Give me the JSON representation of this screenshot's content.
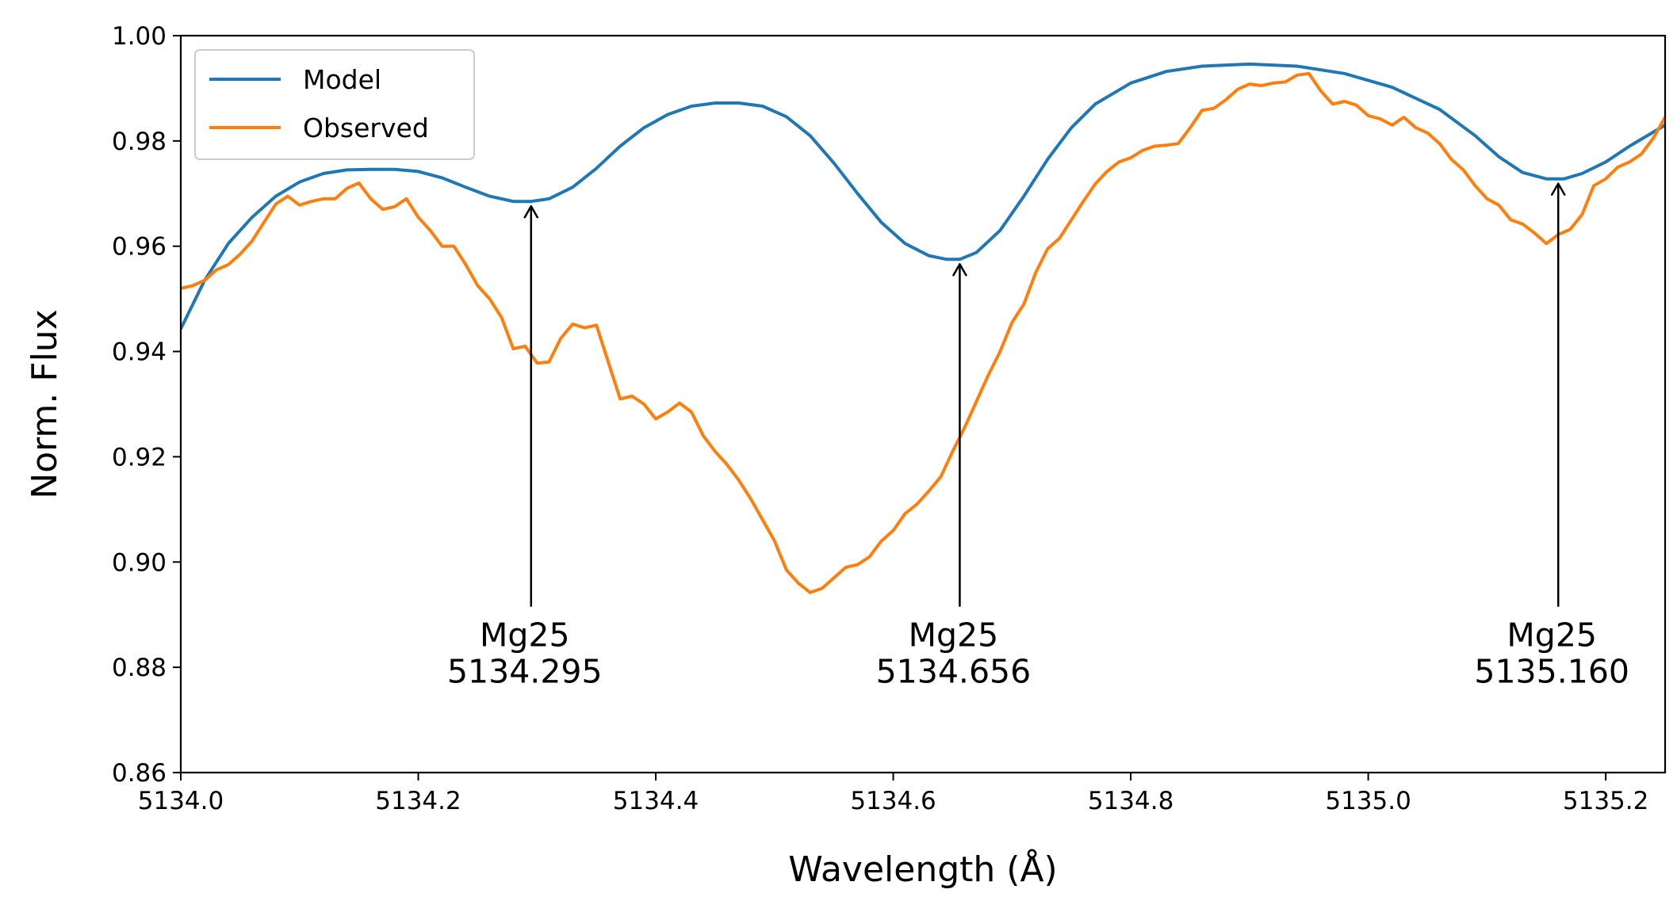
{
  "chart_data": {
    "type": "line",
    "xlabel": "Wavelength (Å)",
    "ylabel": "Norm. Flux",
    "xlim": [
      5134.0,
      5135.25
    ],
    "ylim": [
      0.86,
      1.0
    ],
    "x_ticks": [
      "5134.0",
      "5134.2",
      "5134.4",
      "5134.6",
      "5134.8",
      "5135.0",
      "5135.2"
    ],
    "x_tick_values": [
      5134.0,
      5134.2,
      5134.4,
      5134.6,
      5134.8,
      5135.0,
      5135.2
    ],
    "y_ticks": [
      "0.86",
      "0.88",
      "0.90",
      "0.92",
      "0.94",
      "0.96",
      "0.98",
      "1.00"
    ],
    "y_tick_values": [
      0.86,
      0.88,
      0.9,
      0.92,
      0.94,
      0.96,
      0.98,
      1.0
    ],
    "grid": false,
    "legend_position": "top-left",
    "series": [
      {
        "name": "Model",
        "color": "#1f77b4",
        "points": [
          [
            5134.0,
            0.9443
          ],
          [
            5134.02,
            0.9535
          ],
          [
            5134.04,
            0.9605
          ],
          [
            5134.06,
            0.9655
          ],
          [
            5134.08,
            0.9695
          ],
          [
            5134.1,
            0.9722
          ],
          [
            5134.12,
            0.9738
          ],
          [
            5134.14,
            0.9745
          ],
          [
            5134.16,
            0.9746
          ],
          [
            5134.18,
            0.9746
          ],
          [
            5134.2,
            0.9742
          ],
          [
            5134.22,
            0.973
          ],
          [
            5134.24,
            0.9712
          ],
          [
            5134.26,
            0.9695
          ],
          [
            5134.28,
            0.9685
          ],
          [
            5134.295,
            0.9685
          ],
          [
            5134.31,
            0.969
          ],
          [
            5134.33,
            0.9712
          ],
          [
            5134.35,
            0.9748
          ],
          [
            5134.37,
            0.979
          ],
          [
            5134.39,
            0.9825
          ],
          [
            5134.41,
            0.985
          ],
          [
            5134.43,
            0.9866
          ],
          [
            5134.45,
            0.9872
          ],
          [
            5134.47,
            0.9872
          ],
          [
            5134.49,
            0.9866
          ],
          [
            5134.51,
            0.9846
          ],
          [
            5134.53,
            0.981
          ],
          [
            5134.55,
            0.9758
          ],
          [
            5134.57,
            0.97
          ],
          [
            5134.59,
            0.9645
          ],
          [
            5134.61,
            0.9605
          ],
          [
            5134.63,
            0.9582
          ],
          [
            5134.645,
            0.9575
          ],
          [
            5134.656,
            0.9575
          ],
          [
            5134.67,
            0.9588
          ],
          [
            5134.69,
            0.963
          ],
          [
            5134.71,
            0.9695
          ],
          [
            5134.73,
            0.9765
          ],
          [
            5134.75,
            0.9825
          ],
          [
            5134.77,
            0.987
          ],
          [
            5134.8,
            0.991
          ],
          [
            5134.83,
            0.9932
          ],
          [
            5134.86,
            0.9942
          ],
          [
            5134.9,
            0.9946
          ],
          [
            5134.94,
            0.9942
          ],
          [
            5134.98,
            0.9928
          ],
          [
            5135.02,
            0.9902
          ],
          [
            5135.06,
            0.986
          ],
          [
            5135.09,
            0.981
          ],
          [
            5135.11,
            0.977
          ],
          [
            5135.13,
            0.974
          ],
          [
            5135.15,
            0.9728
          ],
          [
            5135.165,
            0.9728
          ],
          [
            5135.18,
            0.9738
          ],
          [
            5135.2,
            0.976
          ],
          [
            5135.22,
            0.979
          ],
          [
            5135.25,
            0.983
          ]
        ]
      },
      {
        "name": "Observed",
        "color": "#ff7f0e",
        "points": [
          [
            5134.0,
            0.952
          ],
          [
            5134.01,
            0.9525
          ],
          [
            5134.02,
            0.9535
          ],
          [
            5134.03,
            0.9555
          ],
          [
            5134.04,
            0.9565
          ],
          [
            5134.05,
            0.9585
          ],
          [
            5134.06,
            0.961
          ],
          [
            5134.07,
            0.9645
          ],
          [
            5134.08,
            0.968
          ],
          [
            5134.09,
            0.9695
          ],
          [
            5134.1,
            0.9678
          ],
          [
            5134.11,
            0.9685
          ],
          [
            5134.12,
            0.969
          ],
          [
            5134.13,
            0.969
          ],
          [
            5134.14,
            0.971
          ],
          [
            5134.15,
            0.972
          ],
          [
            5134.16,
            0.969
          ],
          [
            5134.17,
            0.967
          ],
          [
            5134.18,
            0.9675
          ],
          [
            5134.19,
            0.969
          ],
          [
            5134.2,
            0.9655
          ],
          [
            5134.21,
            0.963
          ],
          [
            5134.22,
            0.96
          ],
          [
            5134.23,
            0.96
          ],
          [
            5134.24,
            0.9565
          ],
          [
            5134.25,
            0.9525
          ],
          [
            5134.26,
            0.95
          ],
          [
            5134.27,
            0.9465
          ],
          [
            5134.28,
            0.9405
          ],
          [
            5134.29,
            0.941
          ],
          [
            5134.3,
            0.9378
          ],
          [
            5134.31,
            0.938
          ],
          [
            5134.32,
            0.9425
          ],
          [
            5134.33,
            0.9452
          ],
          [
            5134.34,
            0.9445
          ],
          [
            5134.35,
            0.945
          ],
          [
            5134.36,
            0.938
          ],
          [
            5134.37,
            0.931
          ],
          [
            5134.38,
            0.9315
          ],
          [
            5134.39,
            0.93
          ],
          [
            5134.4,
            0.9272
          ],
          [
            5134.41,
            0.9285
          ],
          [
            5134.42,
            0.9302
          ],
          [
            5134.43,
            0.9285
          ],
          [
            5134.44,
            0.924
          ],
          [
            5134.45,
            0.921
          ],
          [
            5134.46,
            0.9185
          ],
          [
            5134.47,
            0.9155
          ],
          [
            5134.48,
            0.912
          ],
          [
            5134.49,
            0.908
          ],
          [
            5134.5,
            0.904
          ],
          [
            5134.51,
            0.8985
          ],
          [
            5134.52,
            0.896
          ],
          [
            5134.53,
            0.8942
          ],
          [
            5134.54,
            0.895
          ],
          [
            5134.55,
            0.897
          ],
          [
            5134.56,
            0.899
          ],
          [
            5134.57,
            0.8995
          ],
          [
            5134.58,
            0.901
          ],
          [
            5134.59,
            0.904
          ],
          [
            5134.6,
            0.906
          ],
          [
            5134.61,
            0.9092
          ],
          [
            5134.62,
            0.911
          ],
          [
            5134.63,
            0.9135
          ],
          [
            5134.64,
            0.9162
          ],
          [
            5134.65,
            0.921
          ],
          [
            5134.66,
            0.9255
          ],
          [
            5134.67,
            0.9305
          ],
          [
            5134.68,
            0.9355
          ],
          [
            5134.69,
            0.94
          ],
          [
            5134.7,
            0.9455
          ],
          [
            5134.71,
            0.949
          ],
          [
            5134.72,
            0.955
          ],
          [
            5134.73,
            0.9595
          ],
          [
            5134.74,
            0.9615
          ],
          [
            5134.75,
            0.965
          ],
          [
            5134.76,
            0.9685
          ],
          [
            5134.77,
            0.9718
          ],
          [
            5134.78,
            0.9742
          ],
          [
            5134.79,
            0.976
          ],
          [
            5134.8,
            0.9768
          ],
          [
            5134.81,
            0.9782
          ],
          [
            5134.82,
            0.979
          ],
          [
            5134.83,
            0.9792
          ],
          [
            5134.84,
            0.9795
          ],
          [
            5134.85,
            0.9825
          ],
          [
            5134.86,
            0.9858
          ],
          [
            5134.87,
            0.9862
          ],
          [
            5134.88,
            0.9878
          ],
          [
            5134.89,
            0.9898
          ],
          [
            5134.9,
            0.9908
          ],
          [
            5134.91,
            0.9905
          ],
          [
            5134.92,
            0.991
          ],
          [
            5134.93,
            0.9912
          ],
          [
            5134.94,
            0.9925
          ],
          [
            5134.95,
            0.9928
          ],
          [
            5134.96,
            0.9895
          ],
          [
            5134.97,
            0.987
          ],
          [
            5134.98,
            0.9875
          ],
          [
            5134.99,
            0.9868
          ],
          [
            5135.0,
            0.9848
          ],
          [
            5135.01,
            0.9842
          ],
          [
            5135.02,
            0.983
          ],
          [
            5135.03,
            0.9845
          ],
          [
            5135.04,
            0.9825
          ],
          [
            5135.05,
            0.9815
          ],
          [
            5135.06,
            0.9795
          ],
          [
            5135.07,
            0.9765
          ],
          [
            5135.08,
            0.9745
          ],
          [
            5135.09,
            0.9715
          ],
          [
            5135.1,
            0.969
          ],
          [
            5135.11,
            0.9678
          ],
          [
            5135.12,
            0.965
          ],
          [
            5135.13,
            0.9642
          ],
          [
            5135.14,
            0.9625
          ],
          [
            5135.15,
            0.9605
          ],
          [
            5135.16,
            0.9622
          ],
          [
            5135.17,
            0.9632
          ],
          [
            5135.18,
            0.966
          ],
          [
            5135.19,
            0.9715
          ],
          [
            5135.2,
            0.9728
          ],
          [
            5135.21,
            0.975
          ],
          [
            5135.22,
            0.976
          ],
          [
            5135.23,
            0.9775
          ],
          [
            5135.24,
            0.9805
          ],
          [
            5135.25,
            0.9845
          ]
        ]
      }
    ],
    "annotations": [
      {
        "label": "Mg25",
        "wavelength_text": "5134.295",
        "x": 5134.295,
        "y_tip": 0.9685,
        "y_text": 0.887
      },
      {
        "label": "Mg25",
        "wavelength_text": "5134.656",
        "x": 5134.656,
        "y_tip": 0.9575,
        "y_text": 0.887
      },
      {
        "label": "Mg25",
        "wavelength_text": "5135.160",
        "x": 5135.16,
        "y_tip": 0.9728,
        "y_text": 0.887
      }
    ]
  }
}
